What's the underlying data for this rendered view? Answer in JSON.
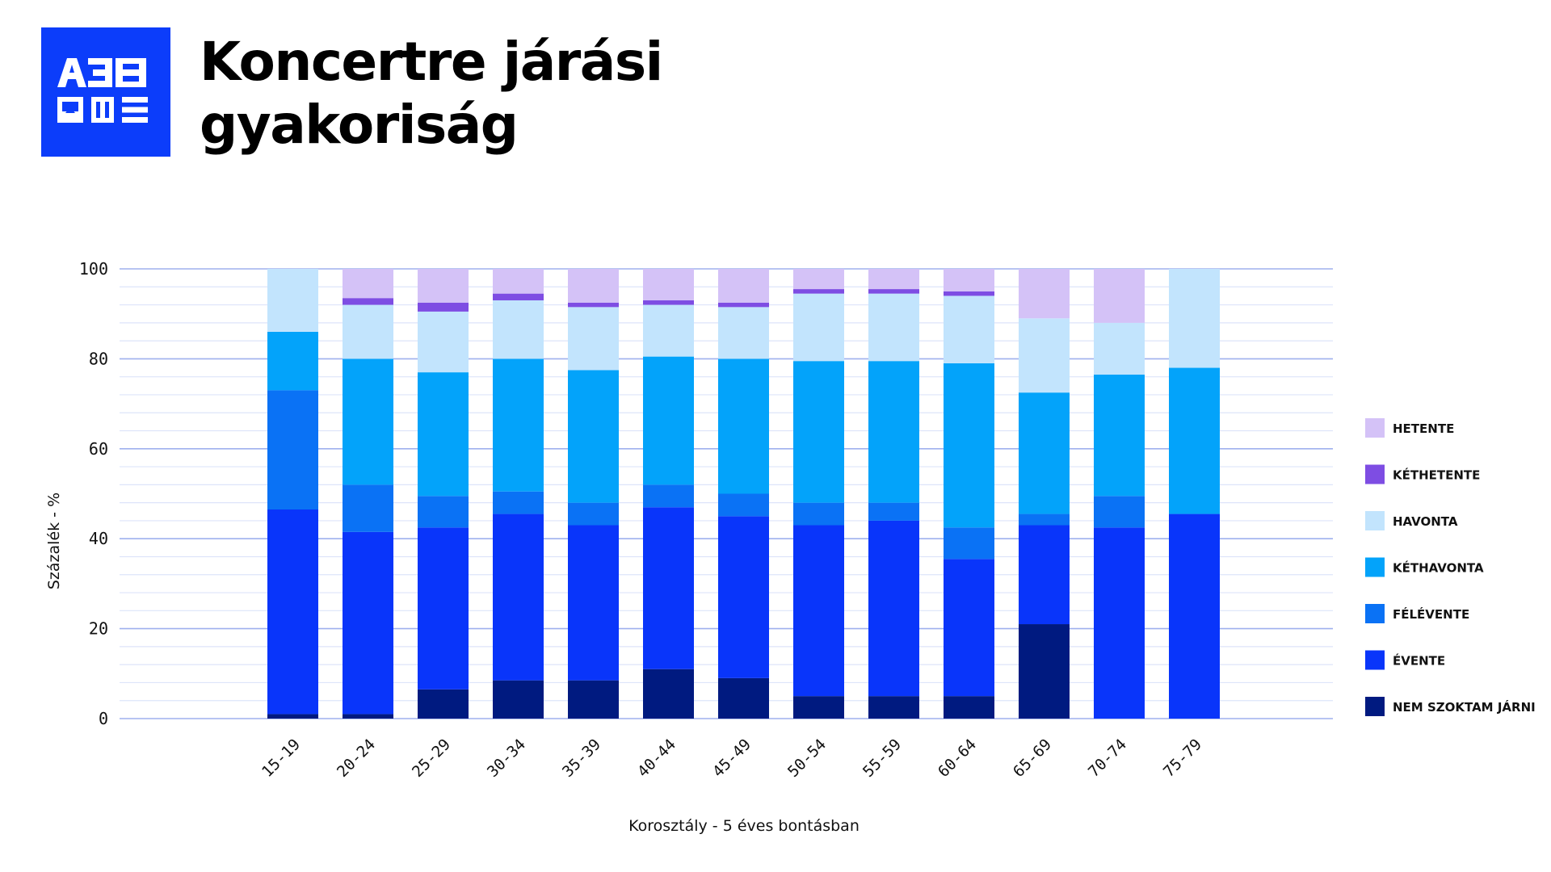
{
  "logo": {
    "text": "A38",
    "icon": "a38-logo-icon",
    "background": "#0c3dfa"
  },
  "title": "Koncertre járási gyakoriság",
  "chart_data": {
    "type": "bar",
    "stacked": true,
    "categories": [
      "15-19",
      "20-24",
      "25-29",
      "30-34",
      "35-39",
      "40-44",
      "45-49",
      "50-54",
      "55-59",
      "60-64",
      "65-69",
      "70-74",
      "75-79"
    ],
    "series": [
      {
        "name": "NEM SZOKTAM JÁRNI",
        "color": "#001a80",
        "values": [
          1,
          1,
          6.5,
          8.5,
          8.5,
          11,
          9,
          5,
          5,
          5,
          21,
          0,
          0
        ]
      },
      {
        "name": "ÉVENTE",
        "color": "#0935fa",
        "values": [
          45.5,
          40.5,
          36,
          37,
          34.5,
          36,
          36,
          38,
          39,
          30.5,
          22,
          42.5,
          45.5
        ]
      },
      {
        "name": "FÉLÉVENTE",
        "color": "#0a72f5",
        "values": [
          26.5,
          10.5,
          7,
          5,
          5,
          5,
          5,
          5,
          4,
          7,
          2.5,
          7,
          0
        ]
      },
      {
        "name": "KÉTHAVONTA",
        "color": "#03a3fa",
        "values": [
          13,
          28,
          27.5,
          29.5,
          29.5,
          28.5,
          30,
          31.5,
          31.5,
          36.5,
          27,
          27,
          32.5
        ]
      },
      {
        "name": "HAVONTA",
        "color": "#c2e4fd",
        "values": [
          14,
          12,
          13.5,
          13,
          14,
          11.5,
          11.5,
          15,
          15,
          15,
          16.5,
          11.5,
          22
        ]
      },
      {
        "name": "KÉTHETENTE",
        "color": "#7e4de3",
        "values": [
          0,
          1.5,
          2,
          1.5,
          1,
          1,
          1,
          1,
          1,
          1,
          0,
          0,
          0
        ]
      },
      {
        "name": "HETENTE",
        "color": "#d4c2f7",
        "values": [
          0,
          6.5,
          7.5,
          5.5,
          7.5,
          7,
          7.5,
          4.5,
          4.5,
          5,
          11,
          12,
          0
        ]
      }
    ],
    "legend": [
      "HETENTE",
      "KÉTHETENTE",
      "HAVONTA",
      "KÉTHAVONTA",
      "FÉLÉVENTE",
      "ÉVENTE",
      "NEM SZOKTAM JÁRNI"
    ],
    "legend_position": "right",
    "ylim": [
      0,
      100
    ],
    "yticks": [
      "0",
      "20",
      "40",
      "60",
      "80",
      "100"
    ],
    "xlabel": "Korosztály - 5 éves bontásban",
    "ylabel": "Százalék - %",
    "grid": true,
    "gridline_color": "#9fb0ee",
    "minor_gridline_color": "#dde4fa"
  }
}
